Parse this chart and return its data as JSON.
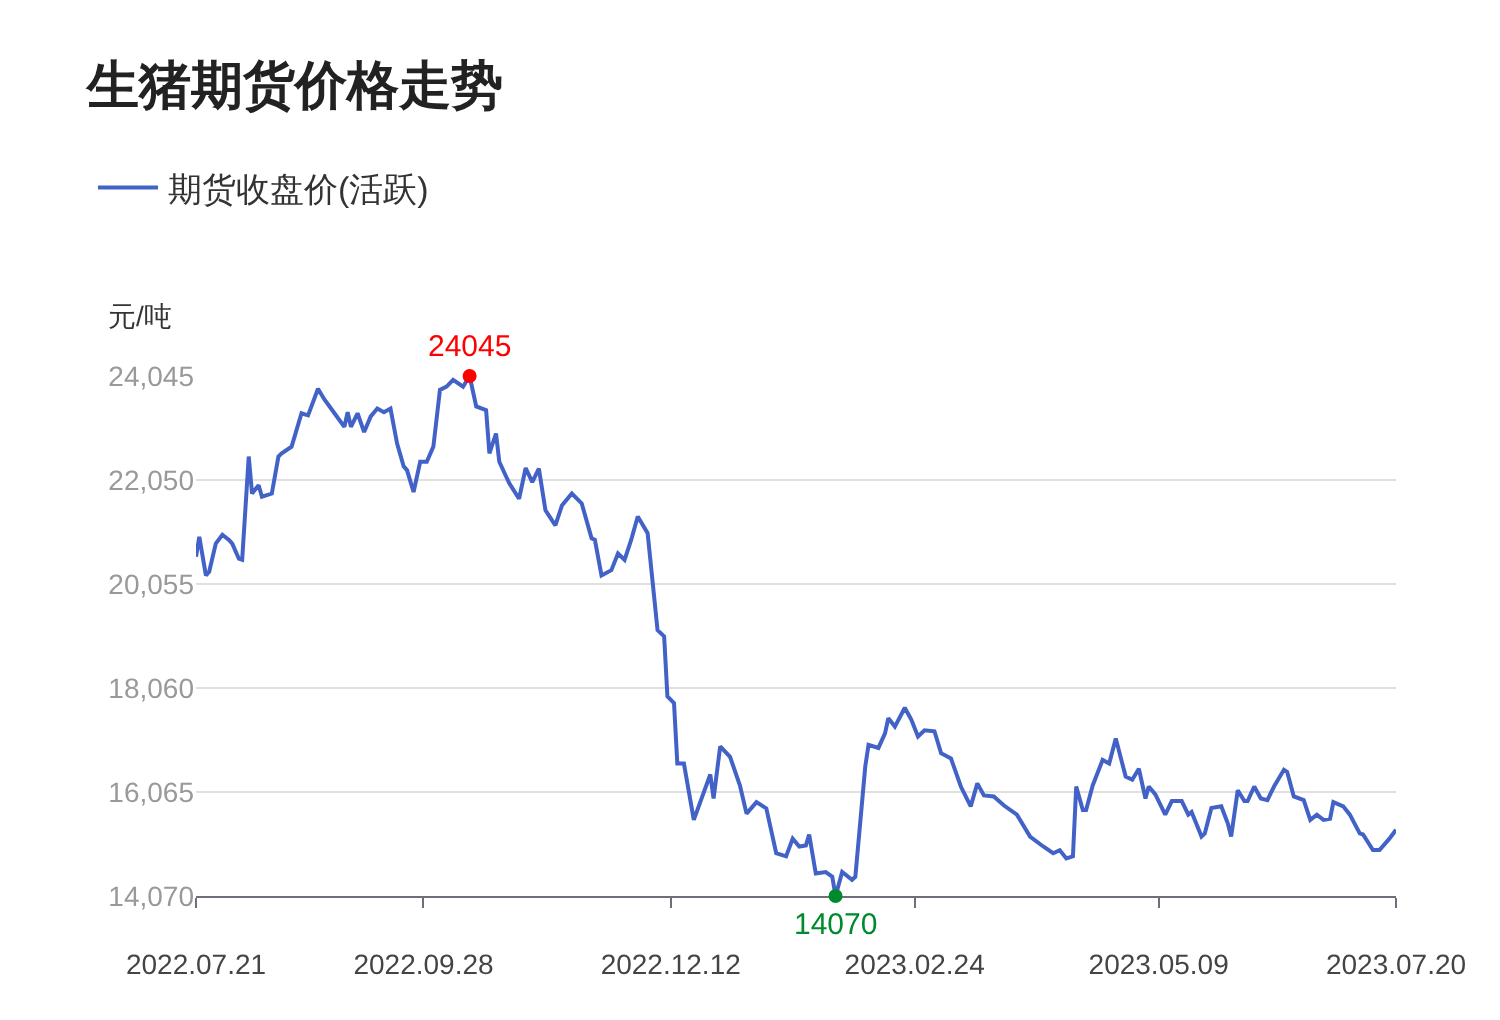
{
  "chart_data": {
    "type": "line",
    "title": "生猪期货价格走势",
    "ylabel": "元/吨",
    "legend": "top left",
    "grid": "y",
    "marker": "none",
    "line_style": "solid",
    "xlim": [
      "2022-07-21",
      "2023-07-20"
    ],
    "xticks": [
      {
        "value": "2022-07-21",
        "label": "2022.07.21"
      },
      {
        "value": "2022-09-28",
        "label": "2022.09.28"
      },
      {
        "value": "2022-12-12",
        "label": "2022.12.12"
      },
      {
        "value": "2023-02-24",
        "label": "2023.02.24"
      },
      {
        "value": "2023-05-09",
        "label": "2023.05.09"
      },
      {
        "value": "2023-07-20",
        "label": "2023.07.20"
      }
    ],
    "ylim": [
      14070,
      24045
    ],
    "yticks": [
      {
        "value": 14070,
        "label": "14,070"
      },
      {
        "value": 16065,
        "label": "16,065"
      },
      {
        "value": 18060,
        "label": "18,060"
      },
      {
        "value": 20055,
        "label": "20,055"
      },
      {
        "value": 22050,
        "label": "22,050"
      },
      {
        "value": 24045,
        "label": "24,045"
      }
    ],
    "annotations": [
      {
        "text": "24045",
        "x": "2022-10-12",
        "y": 24045
      },
      {
        "text": "14070",
        "x": "2023-01-31",
        "y": 14070
      }
    ],
    "x": [
      "2022-07-21",
      "2022-07-22",
      "2022-07-24",
      "2022-07-25",
      "2022-07-27",
      "2022-07-29",
      "2022-07-31",
      "2022-08-01",
      "2022-08-03",
      "2022-08-04",
      "2022-08-06",
      "2022-08-07",
      "2022-08-09",
      "2022-08-10",
      "2022-08-13",
      "2022-08-15",
      "2022-08-16",
      "2022-08-19",
      "2022-08-22",
      "2022-08-24",
      "2022-08-27",
      "2022-08-29",
      "2022-09-01",
      "2022-09-04",
      "2022-09-05",
      "2022-09-06",
      "2022-09-08",
      "2022-09-10",
      "2022-09-12",
      "2022-09-14",
      "2022-09-16",
      "2022-09-18",
      "2022-09-20",
      "2022-09-22",
      "2022-09-23",
      "2022-09-25",
      "2022-09-27",
      "2022-09-29",
      "2022-10-01",
      "2022-10-03",
      "2022-10-05",
      "2022-10-07",
      "2022-10-10",
      "2022-10-12",
      "2022-10-14",
      "2022-10-17",
      "2022-10-18",
      "2022-10-20",
      "2022-10-21",
      "2022-10-24",
      "2022-10-27",
      "2022-10-29",
      "2022-10-31",
      "2022-11-02",
      "2022-11-04",
      "2022-11-07",
      "2022-11-09",
      "2022-11-12",
      "2022-11-15",
      "2022-11-18",
      "2022-11-19",
      "2022-11-21",
      "2022-11-24",
      "2022-11-26",
      "2022-11-28",
      "2022-11-30",
      "2022-12-02",
      "2022-12-05",
      "2022-12-08",
      "2022-12-10",
      "2022-12-11",
      "2022-12-13",
      "2022-12-14",
      "2022-12-16",
      "2022-12-19",
      "2022-12-24",
      "2022-12-25",
      "2022-12-27",
      "2022-12-30",
      "2023-01-02",
      "2023-01-04",
      "2023-01-07",
      "2023-01-10",
      "2023-01-13",
      "2023-01-16",
      "2023-01-18",
      "2023-01-20",
      "2023-01-22",
      "2023-01-23",
      "2023-01-25",
      "2023-01-28",
      "2023-01-30",
      "2023-01-31",
      "2023-02-02",
      "2023-02-05",
      "2023-02-06",
      "2023-02-09",
      "2023-02-10",
      "2023-02-13",
      "2023-02-15",
      "2023-02-16",
      "2023-02-18",
      "2023-02-21",
      "2023-02-23",
      "2023-02-25",
      "2023-02-27",
      "2023-03-02",
      "2023-03-04",
      "2023-03-07",
      "2023-03-10",
      "2023-03-13",
      "2023-03-15",
      "2023-03-17",
      "2023-03-20",
      "2023-03-23",
      "2023-03-27",
      "2023-03-31",
      "2023-04-04",
      "2023-04-07",
      "2023-04-09",
      "2023-04-11",
      "2023-04-13",
      "2023-04-14",
      "2023-04-16",
      "2023-04-17",
      "2023-04-19",
      "2023-04-22",
      "2023-04-24",
      "2023-04-26",
      "2023-04-29",
      "2023-05-01",
      "2023-05-03",
      "2023-05-05",
      "2023-05-06",
      "2023-05-08",
      "2023-05-11",
      "2023-05-13",
      "2023-05-16",
      "2023-05-18",
      "2023-05-19",
      "2023-05-22",
      "2023-05-23",
      "2023-05-25",
      "2023-05-28",
      "2023-05-30",
      "2023-05-31",
      "2023-06-02",
      "2023-06-04",
      "2023-06-05",
      "2023-06-07",
      "2023-06-09",
      "2023-06-11",
      "2023-06-13",
      "2023-06-16",
      "2023-06-17",
      "2023-06-19",
      "2023-06-22",
      "2023-06-24",
      "2023-06-26",
      "2023-06-28",
      "2023-06-30",
      "2023-07-01",
      "2023-07-04",
      "2023-07-06",
      "2023-07-09",
      "2023-07-10",
      "2023-07-13",
      "2023-07-15",
      "2023-07-18",
      "2023-07-20"
    ],
    "series": [
      {
        "name": "期货收盘价(活跃)",
        "color": "#4262c7",
        "values": [
          20580,
          20960,
          20220,
          20290,
          20830,
          21000,
          20900,
          20830,
          20540,
          20520,
          22500,
          21790,
          21950,
          21730,
          21790,
          22500,
          22560,
          22690,
          23330,
          23290,
          23800,
          23590,
          23330,
          23070,
          23350,
          23070,
          23330,
          22970,
          23270,
          23420,
          23350,
          23420,
          22750,
          22310,
          22240,
          21820,
          22400,
          22400,
          22690,
          23780,
          23840,
          23970,
          23840,
          24045,
          23460,
          23390,
          22560,
          22940,
          22400,
          21990,
          21690,
          22280,
          22010,
          22270,
          21470,
          21180,
          21560,
          21790,
          21600,
          20930,
          20900,
          20220,
          20320,
          20640,
          20520,
          20900,
          21350,
          21030,
          19170,
          19050,
          17900,
          17770,
          16610,
          16610,
          15530,
          16400,
          15940,
          16940,
          16740,
          16190,
          15650,
          15870,
          15750,
          14890,
          14830,
          15170,
          15020,
          15040,
          15250,
          14500,
          14530,
          14440,
          14070,
          14530,
          14380,
          14440,
          16550,
          16970,
          16910,
          17190,
          17480,
          17320,
          17680,
          17450,
          17130,
          17250,
          17230,
          16810,
          16710,
          16170,
          15790,
          16230,
          16000,
          15980,
          15810,
          15630,
          15210,
          15020,
          14890,
          14950,
          14790,
          14830,
          16170,
          15720,
          15720,
          16190,
          16680,
          16610,
          17090,
          16360,
          16300,
          16510,
          15940,
          16170,
          16020,
          15630,
          15890,
          15890,
          15630,
          15680,
          15210,
          15270,
          15760,
          15790,
          15460,
          15210,
          16100,
          15890,
          15890,
          16170,
          15940,
          15910,
          16170,
          16490,
          16450,
          15980,
          15910,
          15530,
          15630,
          15530,
          15550,
          15870,
          15790,
          15630,
          15270,
          15250,
          14950,
          14950,
          15170,
          15340
        ]
      }
    ]
  }
}
